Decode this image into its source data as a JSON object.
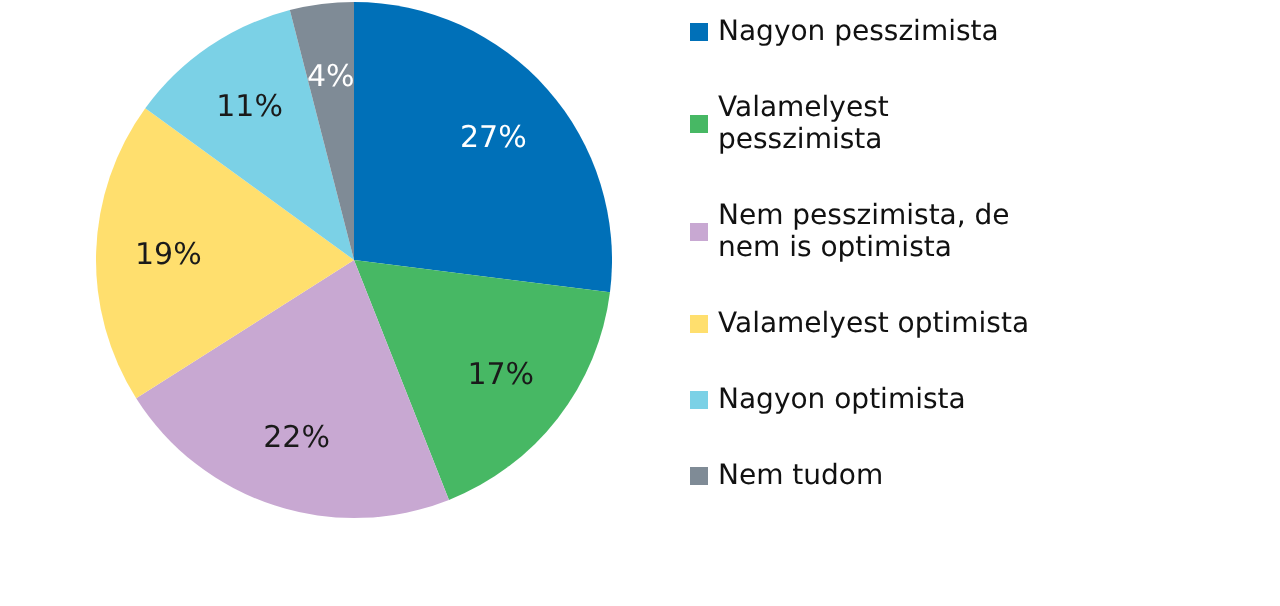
{
  "chart_data": {
    "type": "pie",
    "categories": [
      "Nagyon pesszimista",
      "Valamelyest pesszimista",
      "Nem pesszimista, de nem is optimista",
      "Valamelyest optimista",
      "Nagyon optimista",
      "Nem tudom"
    ],
    "values": [
      27,
      17,
      22,
      19,
      11,
      4
    ],
    "colors": [
      "#0070b8",
      "#47b864",
      "#c8a8d2",
      "#ffdf6e",
      "#7bd1e6",
      "#7f8b96"
    ],
    "value_labels": [
      "27%",
      "17%",
      "22%",
      "19%",
      "11%",
      "4%"
    ],
    "legend": "right"
  }
}
